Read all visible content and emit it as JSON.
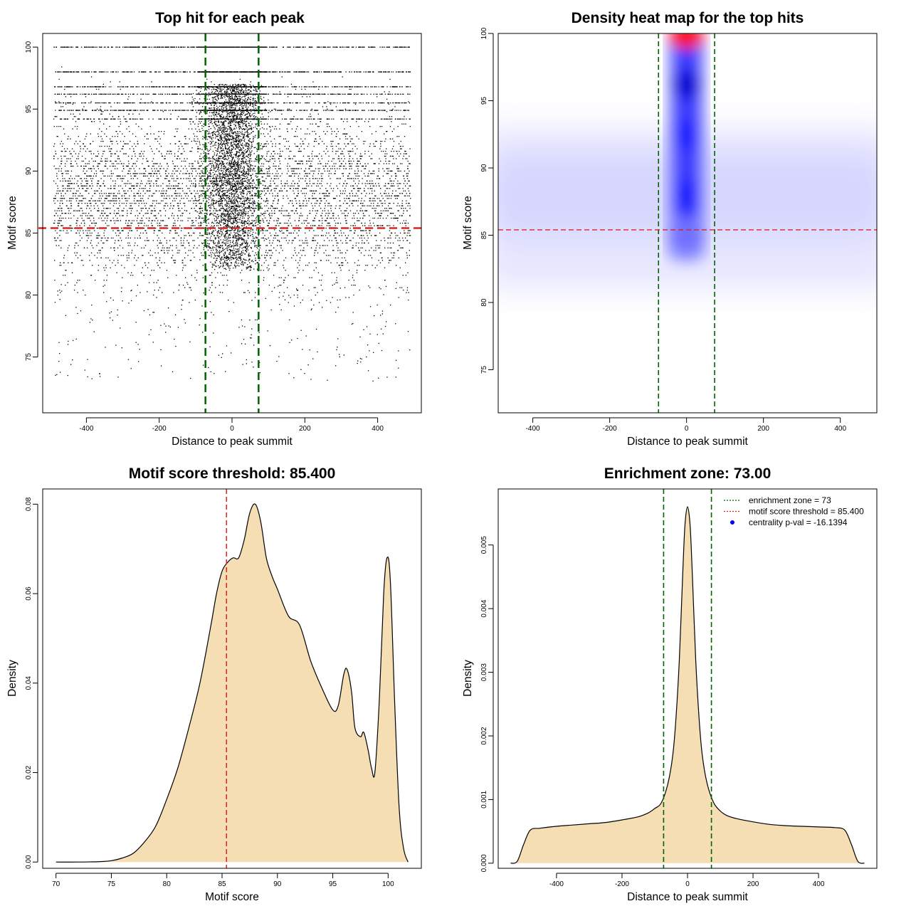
{
  "chart_data": [
    {
      "id": "scatter",
      "type": "scatter",
      "title": "Top hit for each peak",
      "xlabel": "Distance to peak summit",
      "ylabel": "Motif score",
      "xlim": [
        -520,
        520
      ],
      "ylim": [
        70.5,
        101.1
      ],
      "xticks": [
        -400,
        -200,
        0,
        200,
        400
      ],
      "yticks": [
        75,
        80,
        85,
        90,
        95,
        100
      ],
      "xtick_labels": [
        "-400",
        "-200",
        "0",
        "200",
        "400"
      ],
      "ytick_labels": [
        "75",
        "80",
        "85",
        "90",
        "95",
        "100"
      ],
      "x_range": [
        -490,
        490
      ],
      "point_bands": [
        {
          "y": 100.0,
          "n": 420
        },
        {
          "y": 98.0,
          "n": 380
        },
        {
          "y": 96.8,
          "n": 320
        },
        {
          "y": 96.2,
          "n": 300
        },
        {
          "y": 95.5,
          "n": 260
        },
        {
          "y": 94.9,
          "n": 320
        },
        {
          "y": 94.2,
          "n": 240
        }
      ],
      "central_cluster": {
        "center": 0,
        "spread": 40,
        "y_range": [
          82,
          97
        ]
      },
      "background_score_peak": 88,
      "threshold_line": {
        "y": 85.4,
        "color": "#dd2222"
      },
      "zone_lines": {
        "x": [
          -73,
          73
        ],
        "color": "#006400"
      },
      "grid": false,
      "legend": "none"
    },
    {
      "id": "heatmap",
      "type": "heatmap",
      "title": "Density heat map for the top hits",
      "xlabel": "Distance to peak summit",
      "ylabel": "Motif score",
      "xlim": [
        -490,
        495
      ],
      "ylim": [
        71.8,
        100.0
      ],
      "xticks": [
        -400,
        -200,
        0,
        200,
        400
      ],
      "yticks": [
        75,
        80,
        85,
        90,
        95,
        100
      ],
      "xtick_labels": [
        "-400",
        "-200",
        "0",
        "200",
        "400"
      ],
      "ytick_labels": [
        "75",
        "80",
        "85",
        "90",
        "95",
        "100"
      ],
      "color_scale": [
        "#ffffff",
        "#0000ff",
        "#ff0000"
      ],
      "hotspots": [
        {
          "x": 0,
          "y": 99.8,
          "level": "max"
        },
        {
          "x": 0,
          "y": 96.2,
          "level": "high"
        },
        {
          "x": 0,
          "y": 92.5,
          "level": "medium"
        },
        {
          "x": 0,
          "y": 88.0,
          "level": "medium"
        },
        {
          "x": 0,
          "y": 85.0,
          "level": "low"
        }
      ],
      "background_band": {
        "y_center": 88,
        "level": "faint"
      },
      "threshold_line": {
        "y": 85.4,
        "color": "#dd2222"
      },
      "zone_lines": {
        "x": [
          -73,
          73
        ],
        "color": "#006400"
      },
      "grid": false,
      "legend": "none"
    },
    {
      "id": "score_density",
      "type": "area",
      "title": "Motif score threshold: 85.400",
      "xlabel": "Motif score",
      "ylabel": "Density",
      "xlim": [
        68.8,
        103.0
      ],
      "ylim": [
        -0.0014,
        0.0834
      ],
      "xticks": [
        70,
        75,
        80,
        85,
        90,
        95,
        100
      ],
      "yticks": [
        0.0,
        0.02,
        0.04,
        0.06,
        0.08
      ],
      "xtick_labels": [
        "70",
        "75",
        "80",
        "85",
        "90",
        "95",
        "100"
      ],
      "ytick_labels": [
        "0.00",
        "0.02",
        "0.04",
        "0.06",
        "0.08"
      ],
      "fill_color": "#f5deb3",
      "x": [
        70,
        72,
        74,
        75,
        76,
        77,
        78,
        79,
        80,
        81,
        82,
        83,
        84,
        84.5,
        85,
        85.5,
        86,
        86.5,
        87,
        87.5,
        88,
        88.5,
        89,
        89.5,
        90,
        91,
        92,
        93,
        94,
        95,
        95.5,
        96,
        96.3,
        96.7,
        97,
        97.5,
        97.8,
        98.2,
        98.5,
        98.8,
        99.2,
        99.6,
        99.9,
        100.2,
        100.6,
        101,
        101.4,
        101.8
      ],
      "y": [
        0.0,
        0.0,
        0.0001,
        0.0003,
        0.0009,
        0.002,
        0.0045,
        0.008,
        0.014,
        0.021,
        0.03,
        0.04,
        0.053,
        0.06,
        0.065,
        0.067,
        0.068,
        0.068,
        0.072,
        0.078,
        0.08,
        0.076,
        0.068,
        0.064,
        0.061,
        0.055,
        0.053,
        0.045,
        0.039,
        0.034,
        0.035,
        0.042,
        0.043,
        0.038,
        0.03,
        0.028,
        0.029,
        0.025,
        0.021,
        0.02,
        0.036,
        0.06,
        0.068,
        0.063,
        0.035,
        0.012,
        0.003,
        0.0
      ],
      "threshold_line": {
        "x": 85.4,
        "color": "#dd2222"
      },
      "grid": false,
      "legend": "none"
    },
    {
      "id": "distance_density",
      "type": "area",
      "title": "Enrichment zone: 73.00",
      "xlabel": "Distance to peak summit",
      "ylabel": "Density",
      "xlim": [
        -578,
        578
      ],
      "ylim": [
        -8e-05,
        0.00588
      ],
      "xticks": [
        -400,
        -200,
        0,
        200,
        400
      ],
      "yticks": [
        0.0,
        0.001,
        0.002,
        0.003,
        0.004,
        0.005
      ],
      "xtick_labels": [
        "-400",
        "-200",
        "0",
        "200",
        "400"
      ],
      "ytick_labels": [
        "0.000",
        "0.001",
        "0.002",
        "0.003",
        "0.004",
        "0.005"
      ],
      "fill_color": "#f5deb3",
      "x": [
        -540,
        -520,
        -500,
        -480,
        -450,
        -400,
        -350,
        -300,
        -250,
        -200,
        -150,
        -120,
        -100,
        -80,
        -60,
        -45,
        -35,
        -25,
        -15,
        -8,
        0,
        8,
        15,
        25,
        35,
        45,
        60,
        80,
        100,
        120,
        150,
        200,
        250,
        300,
        350,
        400,
        450,
        480,
        500,
        520,
        540
      ],
      "y": [
        0.0,
        3e-05,
        0.0003,
        0.00052,
        0.00055,
        0.00058,
        0.0006,
        0.00062,
        0.00064,
        0.00068,
        0.00073,
        0.00079,
        0.00086,
        0.00095,
        0.00125,
        0.0017,
        0.0023,
        0.0032,
        0.0045,
        0.0053,
        0.0056,
        0.0053,
        0.0045,
        0.0032,
        0.0023,
        0.0017,
        0.00125,
        0.00095,
        0.00082,
        0.00075,
        0.0007,
        0.00065,
        0.00061,
        0.00059,
        0.00058,
        0.00057,
        0.00056,
        0.00052,
        0.0003,
        3e-05,
        0.0
      ],
      "zone_lines": {
        "x": [
          -73,
          73
        ],
        "color": "#006400"
      },
      "legend_position": "top-right",
      "legend": [
        {
          "label": "enrichment zone = 73",
          "style": "dotted",
          "color": "#006400"
        },
        {
          "label": "motif score threshold = 85.400",
          "style": "dotted",
          "color": "#dd2222"
        },
        {
          "label": "centrality p-val = -16.1394",
          "style": "point",
          "color": "#0000ff"
        }
      ],
      "grid": false
    }
  ]
}
